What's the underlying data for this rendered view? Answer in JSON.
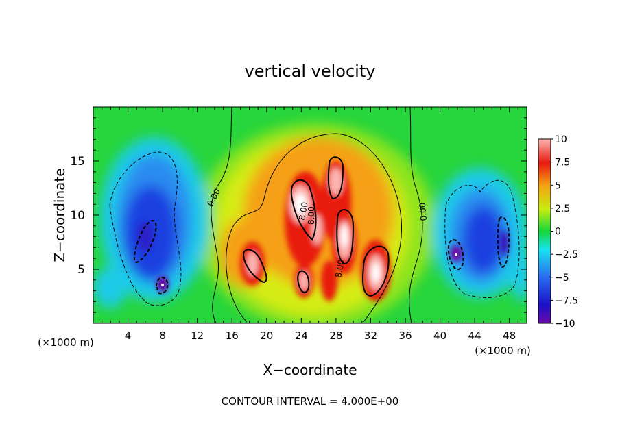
{
  "chart_data": {
    "type": "heatmap",
    "title": "vertical velocity",
    "xlabel": "X−coordinate",
    "ylabel": "Z−coordinate",
    "x_unit_label": "(×1000 m)",
    "y_unit_label": "(×1000 m)",
    "footer": "CONTOUR INTERVAL = 4.000E+00",
    "xlim": [
      0,
      50
    ],
    "ylim": [
      0,
      20
    ],
    "x_ticks": [
      "4",
      "8",
      "12",
      "16",
      "20",
      "24",
      "28",
      "32",
      "36",
      "40",
      "44",
      "48"
    ],
    "y_ticks": [
      "5",
      "10",
      "15"
    ],
    "colorbar": {
      "range": [
        -10,
        10
      ],
      "ticks": [
        "10",
        "7.5",
        "5",
        "2.5",
        "0",
        "−2.5",
        "−5",
        "−7.5",
        "−10"
      ]
    },
    "contour_labels": [
      "0.00",
      "0.00",
      "8.00",
      "8.00",
      "8.00"
    ],
    "features": [
      {
        "kind": "downdraft",
        "x": 8,
        "z": 8,
        "peak": -7
      },
      {
        "kind": "downdraft",
        "x": 8,
        "z": 3.5,
        "peak": -10
      },
      {
        "kind": "downdraft",
        "x": 46,
        "z": 7,
        "peak": -8
      },
      {
        "kind": "downdraft",
        "x": 41.5,
        "z": 6.5,
        "peak": -10
      },
      {
        "kind": "updraft",
        "x": 24.5,
        "z": 11,
        "peak": 10
      },
      {
        "kind": "updraft",
        "x": 28.5,
        "z": 12.5,
        "peak": 10
      },
      {
        "kind": "updraft",
        "x": 27,
        "z": 7,
        "peak": 10
      },
      {
        "kind": "updraft",
        "x": 32.5,
        "z": 6,
        "peak": 10
      },
      {
        "kind": "updraft",
        "x": 18.5,
        "z": 6,
        "peak": 9
      }
    ]
  }
}
